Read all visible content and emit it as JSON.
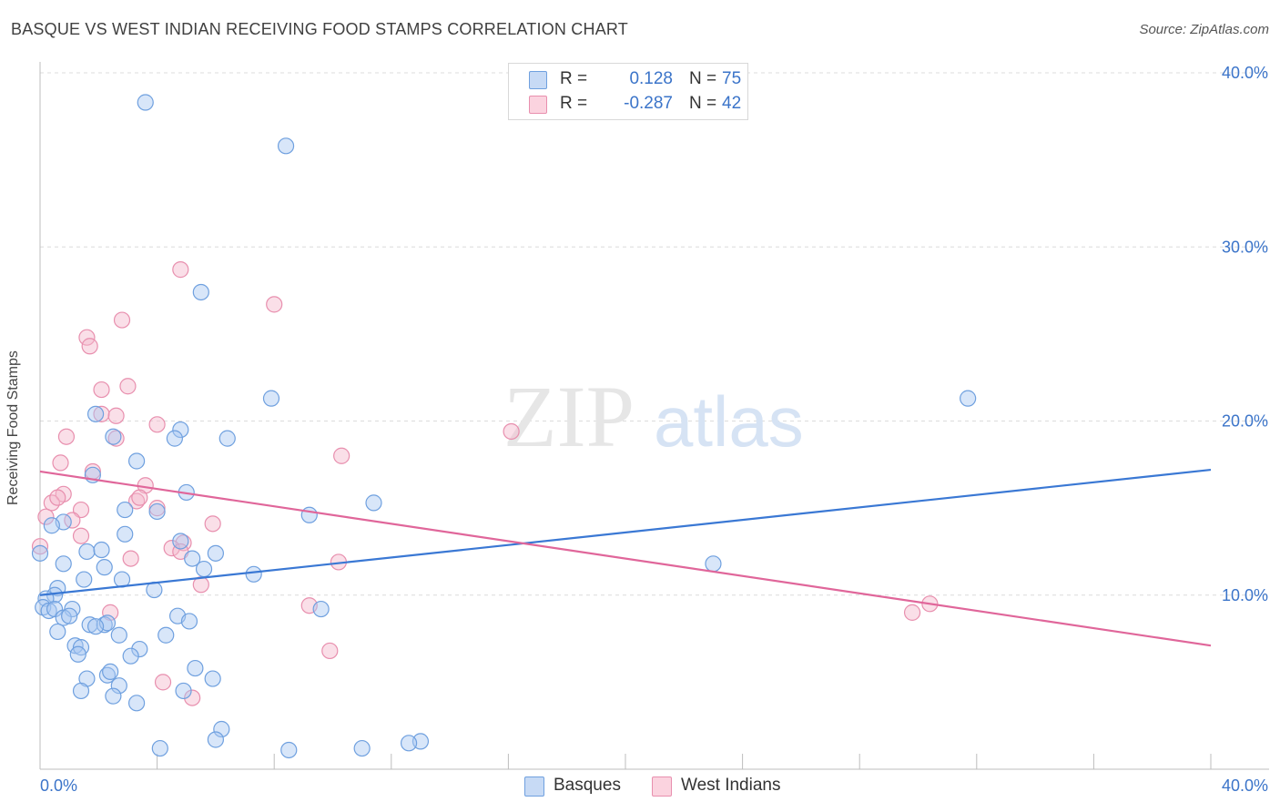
{
  "header": {
    "title": "BASQUE VS WEST INDIAN RECEIVING FOOD STAMPS CORRELATION CHART",
    "source": "Source: ZipAtlas.com"
  },
  "watermark": {
    "zip": "ZIP",
    "atlas": "atlas"
  },
  "legend": {
    "rows": [
      {
        "r_label": "R =",
        "r_value": "0.128",
        "n_label": "N =",
        "n_value": "75",
        "color": "#a9c8f2"
      },
      {
        "r_label": "R =",
        "r_value": "-0.287",
        "n_label": "N =",
        "n_value": "42",
        "color": "#f5b8cb"
      }
    ]
  },
  "bottom_legend": {
    "series1": "Basques",
    "series2": "West Indians"
  },
  "colors": {
    "blue_fill": "#a9c8f2",
    "blue_stroke": "#6fa0df",
    "blue_line": "#3a78d4",
    "pink_fill": "#f5b8cb",
    "pink_stroke": "#e88fae",
    "pink_line": "#e0669a",
    "axis_text": "#3b74c9",
    "grid": "#dcdcdc"
  },
  "chart_data": {
    "type": "scatter",
    "title": "BASQUE VS WEST INDIAN RECEIVING FOOD STAMPS CORRELATION CHART",
    "xlabel": "",
    "ylabel": "Receiving Food Stamps",
    "xlim": [
      0,
      40
    ],
    "ylim": [
      0,
      40
    ],
    "x_tick_labels": [
      "0.0%",
      "40.0%"
    ],
    "y_ticks": [
      10,
      20,
      30,
      40
    ],
    "y_tick_labels": [
      "10.0%",
      "20.0%",
      "30.0%",
      "40.0%"
    ],
    "series": [
      {
        "name": "Basques",
        "R": 0.128,
        "N": 75,
        "trend": {
          "x": [
            0,
            40
          ],
          "y": [
            10.0,
            17.2
          ]
        },
        "points": [
          {
            "x": 3.6,
            "y": 38.3
          },
          {
            "x": 8.4,
            "y": 35.8
          },
          {
            "x": 5.5,
            "y": 27.4
          },
          {
            "x": 7.9,
            "y": 21.3
          },
          {
            "x": 31.7,
            "y": 21.3
          },
          {
            "x": 1.9,
            "y": 20.4
          },
          {
            "x": 2.5,
            "y": 19.1
          },
          {
            "x": 4.8,
            "y": 19.5
          },
          {
            "x": 4.6,
            "y": 19.0
          },
          {
            "x": 6.4,
            "y": 19.0
          },
          {
            "x": 3.3,
            "y": 17.7
          },
          {
            "x": 1.8,
            "y": 16.9
          },
          {
            "x": 5.0,
            "y": 15.9
          },
          {
            "x": 11.4,
            "y": 15.3
          },
          {
            "x": 2.9,
            "y": 14.9
          },
          {
            "x": 4.0,
            "y": 14.8
          },
          {
            "x": 0.8,
            "y": 14.2
          },
          {
            "x": 2.9,
            "y": 13.5
          },
          {
            "x": 4.8,
            "y": 13.1
          },
          {
            "x": 1.6,
            "y": 12.5
          },
          {
            "x": 2.1,
            "y": 12.6
          },
          {
            "x": 5.2,
            "y": 12.1
          },
          {
            "x": 6.0,
            "y": 12.4
          },
          {
            "x": 0.0,
            "y": 12.4
          },
          {
            "x": 0.8,
            "y": 11.8
          },
          {
            "x": 2.2,
            "y": 11.6
          },
          {
            "x": 5.6,
            "y": 11.5
          },
          {
            "x": 23.0,
            "y": 11.8
          },
          {
            "x": 1.5,
            "y": 10.9
          },
          {
            "x": 2.8,
            "y": 10.9
          },
          {
            "x": 3.9,
            "y": 10.3
          },
          {
            "x": 0.6,
            "y": 10.4
          },
          {
            "x": 0.5,
            "y": 10.0
          },
          {
            "x": 0.2,
            "y": 9.8
          },
          {
            "x": 0.1,
            "y": 9.3
          },
          {
            "x": 0.3,
            "y": 9.1
          },
          {
            "x": 0.5,
            "y": 9.2
          },
          {
            "x": 1.1,
            "y": 9.2
          },
          {
            "x": 9.6,
            "y": 9.2
          },
          {
            "x": 0.8,
            "y": 8.7
          },
          {
            "x": 1.0,
            "y": 8.8
          },
          {
            "x": 4.7,
            "y": 8.8
          },
          {
            "x": 1.7,
            "y": 8.3
          },
          {
            "x": 2.2,
            "y": 8.3
          },
          {
            "x": 2.3,
            "y": 8.4
          },
          {
            "x": 5.1,
            "y": 8.5
          },
          {
            "x": 0.6,
            "y": 7.9
          },
          {
            "x": 1.9,
            "y": 8.2
          },
          {
            "x": 2.7,
            "y": 7.7
          },
          {
            "x": 4.3,
            "y": 7.7
          },
          {
            "x": 1.2,
            "y": 7.1
          },
          {
            "x": 1.4,
            "y": 7.0
          },
          {
            "x": 3.4,
            "y": 6.9
          },
          {
            "x": 1.3,
            "y": 6.6
          },
          {
            "x": 3.1,
            "y": 6.5
          },
          {
            "x": 5.3,
            "y": 5.8
          },
          {
            "x": 2.3,
            "y": 5.4
          },
          {
            "x": 2.4,
            "y": 5.6
          },
          {
            "x": 1.6,
            "y": 5.2
          },
          {
            "x": 5.9,
            "y": 5.2
          },
          {
            "x": 2.7,
            "y": 4.8
          },
          {
            "x": 1.4,
            "y": 4.5
          },
          {
            "x": 4.9,
            "y": 4.5
          },
          {
            "x": 2.5,
            "y": 4.2
          },
          {
            "x": 3.3,
            "y": 3.8
          },
          {
            "x": 6.2,
            "y": 2.3
          },
          {
            "x": 6.0,
            "y": 1.7
          },
          {
            "x": 13.0,
            "y": 1.6
          },
          {
            "x": 12.6,
            "y": 1.5
          },
          {
            "x": 4.1,
            "y": 1.2
          },
          {
            "x": 11.0,
            "y": 1.2
          },
          {
            "x": 8.5,
            "y": 1.1
          },
          {
            "x": 0.4,
            "y": 14.0
          },
          {
            "x": 7.3,
            "y": 11.2
          },
          {
            "x": 9.2,
            "y": 14.6
          }
        ]
      },
      {
        "name": "West Indians",
        "R": -0.287,
        "N": 42,
        "trend": {
          "x": [
            0,
            40
          ],
          "y": [
            17.1,
            7.1
          ]
        },
        "points": [
          {
            "x": 4.8,
            "y": 28.7
          },
          {
            "x": 8.0,
            "y": 26.7
          },
          {
            "x": 2.8,
            "y": 25.8
          },
          {
            "x": 1.6,
            "y": 24.8
          },
          {
            "x": 1.7,
            "y": 24.3
          },
          {
            "x": 3.0,
            "y": 22.0
          },
          {
            "x": 2.1,
            "y": 21.8
          },
          {
            "x": 2.1,
            "y": 20.4
          },
          {
            "x": 2.6,
            "y": 20.3
          },
          {
            "x": 4.0,
            "y": 19.8
          },
          {
            "x": 16.1,
            "y": 19.4
          },
          {
            "x": 0.9,
            "y": 19.1
          },
          {
            "x": 2.6,
            "y": 19.0
          },
          {
            "x": 10.3,
            "y": 18.0
          },
          {
            "x": 0.7,
            "y": 17.6
          },
          {
            "x": 1.8,
            "y": 17.1
          },
          {
            "x": 3.6,
            "y": 16.3
          },
          {
            "x": 0.8,
            "y": 15.8
          },
          {
            "x": 0.4,
            "y": 15.3
          },
          {
            "x": 0.6,
            "y": 15.6
          },
          {
            "x": 3.3,
            "y": 15.4
          },
          {
            "x": 3.4,
            "y": 15.6
          },
          {
            "x": 4.0,
            "y": 15.0
          },
          {
            "x": 1.4,
            "y": 14.9
          },
          {
            "x": 0.2,
            "y": 14.5
          },
          {
            "x": 5.9,
            "y": 14.1
          },
          {
            "x": 1.1,
            "y": 14.3
          },
          {
            "x": 1.4,
            "y": 13.4
          },
          {
            "x": 0.0,
            "y": 12.8
          },
          {
            "x": 4.9,
            "y": 13.0
          },
          {
            "x": 4.5,
            "y": 12.7
          },
          {
            "x": 4.8,
            "y": 12.5
          },
          {
            "x": 3.1,
            "y": 12.1
          },
          {
            "x": 10.2,
            "y": 11.9
          },
          {
            "x": 5.5,
            "y": 10.6
          },
          {
            "x": 9.2,
            "y": 9.4
          },
          {
            "x": 30.4,
            "y": 9.5
          },
          {
            "x": 29.8,
            "y": 9.0
          },
          {
            "x": 2.4,
            "y": 9.0
          },
          {
            "x": 9.9,
            "y": 6.8
          },
          {
            "x": 4.2,
            "y": 5.0
          },
          {
            "x": 5.2,
            "y": 4.1
          }
        ]
      }
    ]
  }
}
